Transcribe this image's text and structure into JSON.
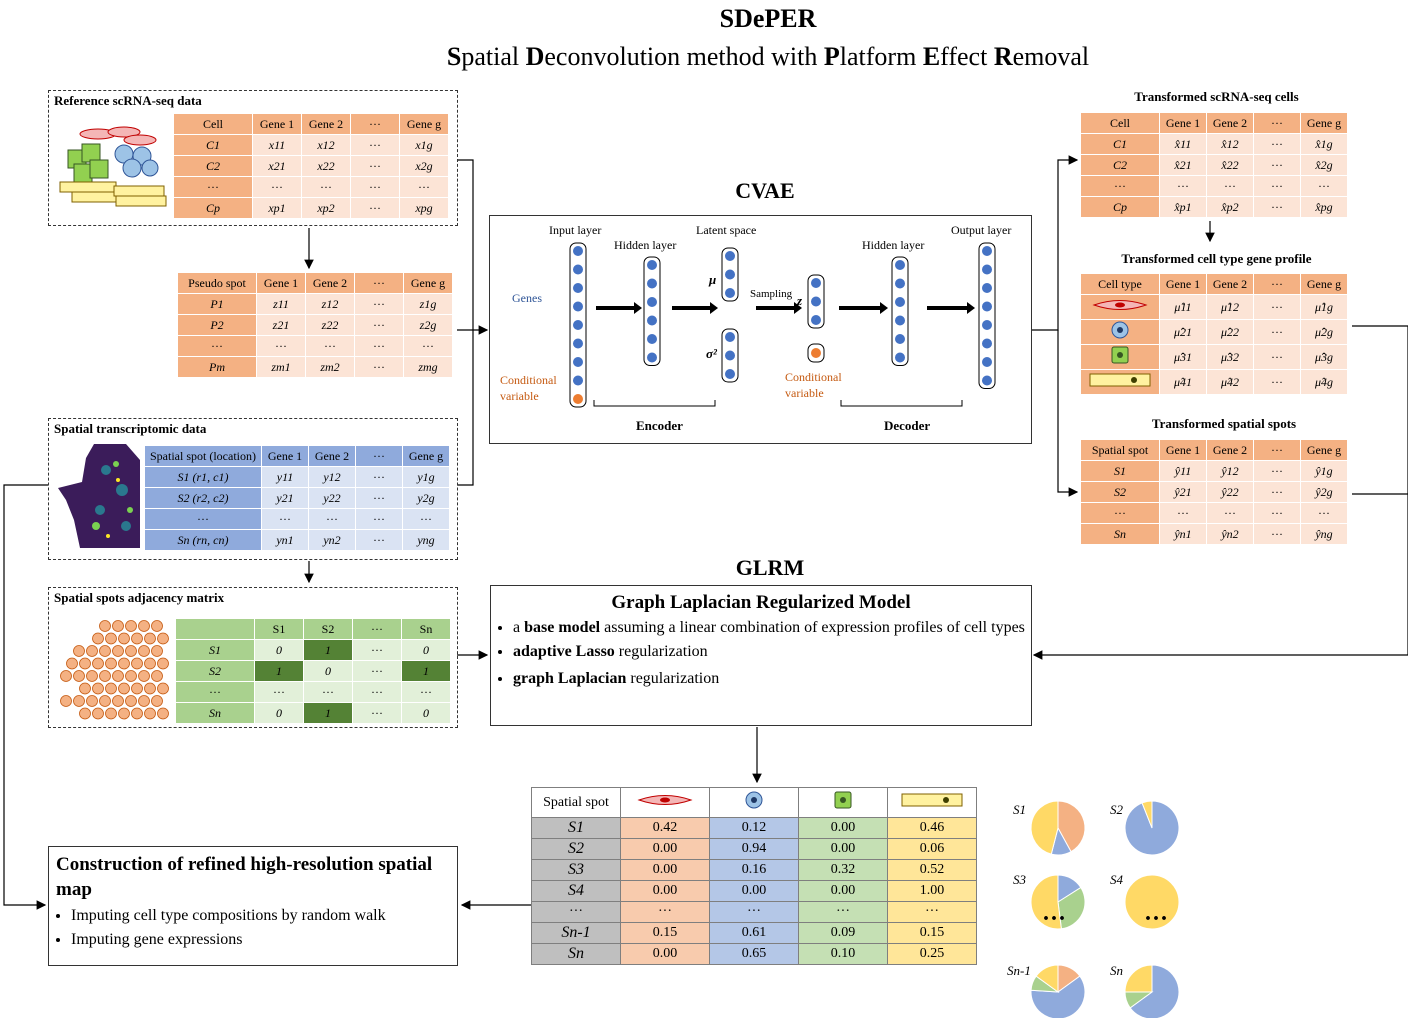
{
  "title": {
    "main": "SDePER",
    "sub": "Spatial Deconvolution method with Platform Effect Removal"
  },
  "reference": {
    "title": "Reference scRNA-seq data",
    "header": [
      "Cell",
      "Gene 1",
      "Gene 2",
      "···",
      "Gene g"
    ],
    "rows": [
      [
        "C1",
        "x11",
        "x12",
        "···",
        "x1g"
      ],
      [
        "C2",
        "x21",
        "x22",
        "···",
        "x2g"
      ],
      [
        "···",
        "···",
        "···",
        "···",
        "···"
      ],
      [
        "Cp",
        "xp1",
        "xp2",
        "···",
        "xpg"
      ]
    ]
  },
  "pseudo": {
    "header": [
      "Pseudo spot",
      "Gene 1",
      "Gene 2",
      "···",
      "Gene g"
    ],
    "rows": [
      [
        "P1",
        "z11",
        "z12",
        "···",
        "z1g"
      ],
      [
        "P2",
        "z21",
        "z22",
        "···",
        "z2g"
      ],
      [
        "···",
        "···",
        "···",
        "···",
        "···"
      ],
      [
        "Pm",
        "zm1",
        "zm2",
        "···",
        "zmg"
      ]
    ]
  },
  "spatial": {
    "title": "Spatial transcriptomic data",
    "header": [
      "Spatial spot (location)",
      "Gene 1",
      "Gene 2",
      "···",
      "Gene g"
    ],
    "rows": [
      [
        "S1 (r1, c1)",
        "y11",
        "y12",
        "···",
        "y1g"
      ],
      [
        "S2 (r2, c2)",
        "y21",
        "y22",
        "···",
        "y2g"
      ],
      [
        "···",
        "···",
        "···",
        "···",
        "···"
      ],
      [
        "Sn (rn, cn)",
        "yn1",
        "yn2",
        "···",
        "yng"
      ]
    ]
  },
  "adjacency": {
    "title": "Spatial spots adjacency matrix",
    "header": [
      "",
      "S1",
      "S2",
      "···",
      "Sn"
    ],
    "rows": [
      [
        "S1",
        "0",
        "1",
        "···",
        "0"
      ],
      [
        "S2",
        "1",
        "0",
        "···",
        "1"
      ],
      [
        "···",
        "···",
        "···",
        "···",
        "···"
      ],
      [
        "Sn",
        "0",
        "1",
        "···",
        "0"
      ]
    ]
  },
  "cvae": {
    "title": "CVAE",
    "input_layer": "Input layer",
    "hidden_layer_1": "Hidden layer",
    "latent_space": "Latent space",
    "hidden_layer_2": "Hidden layer",
    "output_layer": "Output layer",
    "genes": "Genes",
    "conditional_variable_1": "Conditional variable",
    "conditional_variable_2": "Conditional variable",
    "mu": "μ",
    "sigma": "σ²",
    "sampling": "Sampling",
    "z": "z",
    "encoder": "Encoder",
    "decoder": "Decoder"
  },
  "transformed_cells": {
    "title": "Transformed scRNA-seq cells",
    "header": [
      "Cell",
      "Gene 1",
      "Gene 2",
      "···",
      "Gene g"
    ],
    "rows": [
      [
        "C1",
        "x̂11",
        "x̂12",
        "···",
        "x̂1g"
      ],
      [
        "C2",
        "x̂21",
        "x̂22",
        "···",
        "x̂2g"
      ],
      [
        "···",
        "···",
        "···",
        "···",
        "···"
      ],
      [
        "Cp",
        "x̂p1",
        "x̂p2",
        "···",
        "x̂pg"
      ]
    ]
  },
  "transformed_profile": {
    "title": "Transformed cell type gene profile",
    "header": [
      "Cell type",
      "Gene 1",
      "Gene 2",
      "···",
      "Gene g"
    ],
    "rows": [
      [
        "",
        "μ̂11",
        "μ̂12",
        "···",
        "μ̂1g"
      ],
      [
        "",
        "μ̂21",
        "μ̂22",
        "···",
        "μ̂2g"
      ],
      [
        "",
        "μ̂31",
        "μ̂32",
        "···",
        "μ̂3g"
      ],
      [
        "",
        "μ̂41",
        "μ̂42",
        "···",
        "μ̂4g"
      ]
    ]
  },
  "transformed_spots": {
    "title": "Transformed spatial spots",
    "header": [
      "Spatial spot",
      "Gene 1",
      "Gene 2",
      "···",
      "Gene g"
    ],
    "rows": [
      [
        "S1",
        "ŷ11",
        "ŷ12",
        "···",
        "ŷ1g"
      ],
      [
        "S2",
        "ŷ21",
        "ŷ22",
        "···",
        "ŷ2g"
      ],
      [
        "···",
        "···",
        "···",
        "···",
        "···"
      ],
      [
        "Sn",
        "ŷn1",
        "ŷn2",
        "···",
        "ŷng"
      ]
    ]
  },
  "glrm": {
    "title": "GLRM",
    "box_title": "Graph Laplacian Regularized Model",
    "bullet1_pre": "a ",
    "bullet1_bold": "base model",
    "bullet1_post": " assuming a linear combination of expression profiles of cell types",
    "bullet2_bold": "adaptive Lasso",
    "bullet2_post": " regularization",
    "bullet3_bold": "graph Laplacian",
    "bullet3_post": " regularization"
  },
  "construction": {
    "title": "Construction of refined high-resolution spatial map",
    "items": [
      "Imputing cell type compositions by random walk",
      "Imputing gene expressions"
    ]
  },
  "results": {
    "header": "Spatial spot",
    "rows": [
      [
        "S1",
        "0.42",
        "0.12",
        "0.00",
        "0.46"
      ],
      [
        "S2",
        "0.00",
        "0.94",
        "0.00",
        "0.06"
      ],
      [
        "S3",
        "0.00",
        "0.16",
        "0.32",
        "0.52"
      ],
      [
        "S4",
        "0.00",
        "0.00",
        "0.00",
        "1.00"
      ],
      [
        "···",
        "···",
        "···",
        "···",
        "···"
      ],
      [
        "Sn-1",
        "0.15",
        "0.61",
        "0.09",
        "0.15"
      ],
      [
        "Sn",
        "0.00",
        "0.65",
        "0.10",
        "0.25"
      ]
    ]
  },
  "pies": {
    "labels": [
      "S1",
      "S2",
      "S3",
      "S4",
      "Sn-1",
      "Sn"
    ],
    "dots": "···",
    "colors": [
      "#f4b183",
      "#8faadc",
      "#a9d18e",
      "#ffd966"
    ],
    "values": [
      [
        0.42,
        0.12,
        0.0,
        0.46
      ],
      [
        0.0,
        0.94,
        0.0,
        0.06
      ],
      [
        0.0,
        0.16,
        0.32,
        0.52
      ],
      [
        0.0,
        0.0,
        0.0,
        1.0
      ],
      [
        0.15,
        0.61,
        0.09,
        0.15
      ],
      [
        0.0,
        0.65,
        0.1,
        0.25
      ]
    ]
  },
  "colors": {
    "orange_header": "#f4b183",
    "orange_cell": "#fce4d6",
    "blue_header": "#8faadc",
    "blue_cell": "#dae3f3",
    "green_header": "#a9d18e",
    "green_cell": "#e2f0d9",
    "green_dark": "#548235",
    "yellow": "#ffd966",
    "node_blue": "#4472c4",
    "node_orange": "#ed7d31"
  }
}
